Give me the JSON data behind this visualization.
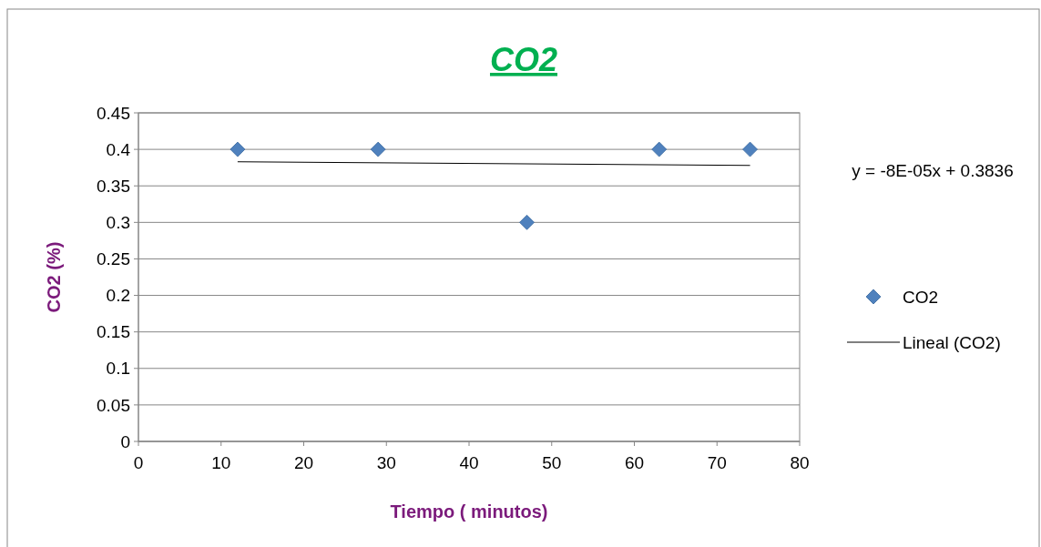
{
  "chart_data": {
    "type": "scatter",
    "title": "CO2",
    "xlabel": "Tiempo ( minutos)",
    "ylabel": "CO2 (%)",
    "annotations": [
      "y = -8E-05x + 0.3836"
    ],
    "series": [
      {
        "name": "CO2",
        "color": "#4f81bd",
        "marker": "diamond",
        "x": [
          12,
          29,
          47,
          63,
          74
        ],
        "values": [
          0.4,
          0.4,
          0.3,
          0.4,
          0.4
        ]
      },
      {
        "name": "Lineal (CO2)",
        "type": "line",
        "color": "#000000",
        "marker": "none",
        "line_style": "solid",
        "x": [
          12,
          74
        ],
        "values": [
          0.383,
          0.378
        ]
      }
    ],
    "xlim": [
      0,
      80
    ],
    "xticks": [
      0,
      10,
      20,
      30,
      40,
      50,
      60,
      70,
      80
    ],
    "ylim": [
      0,
      0.45
    ],
    "yticks": [
      0,
      0.05,
      0.1,
      0.15,
      0.2,
      0.25,
      0.3,
      0.35,
      0.4,
      0.45
    ],
    "grid": "y",
    "legend": "right"
  }
}
